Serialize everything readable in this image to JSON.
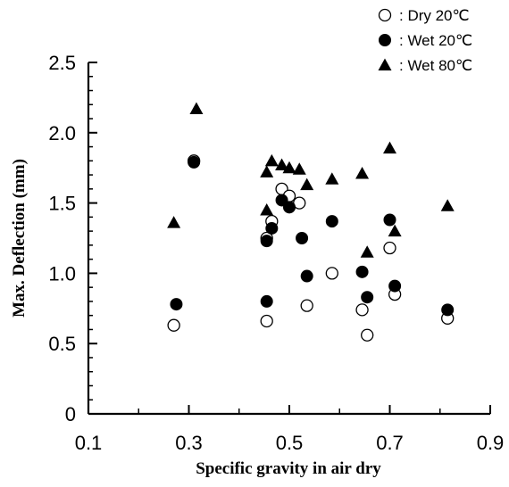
{
  "chart_data": {
    "type": "scatter",
    "title": "",
    "xlabel": "Specific gravity in air dry",
    "ylabel": "Max. Deflection (mm)",
    "xlim": [
      0.1,
      0.9
    ],
    "ylim": [
      0,
      2.5
    ],
    "x_ticks": [
      0.1,
      0.3,
      0.5,
      0.7,
      0.9
    ],
    "x_tick_labels": [
      "0.1",
      "0.3",
      "0.5",
      "0.7",
      "0.9"
    ],
    "y_ticks": [
      0,
      0.5,
      1.0,
      1.5,
      2.0,
      2.5
    ],
    "y_tick_labels": [
      "0",
      "0.5",
      "1.0",
      "1.5",
      "2.0",
      "2.5"
    ],
    "grid": false,
    "legend_position": "top-right",
    "series": [
      {
        "name": "Dry 20℃",
        "legend_label": ": Dry 20℃",
        "marker": "open-circle",
        "points": [
          [
            0.27,
            0.63
          ],
          [
            0.31,
            1.8
          ],
          [
            0.455,
            0.66
          ],
          [
            0.455,
            1.25
          ],
          [
            0.465,
            1.37
          ],
          [
            0.485,
            1.6
          ],
          [
            0.5,
            1.55
          ],
          [
            0.52,
            1.5
          ],
          [
            0.535,
            0.77
          ],
          [
            0.585,
            1.0
          ],
          [
            0.645,
            0.74
          ],
          [
            0.655,
            0.56
          ],
          [
            0.7,
            1.18
          ],
          [
            0.71,
            0.85
          ],
          [
            0.815,
            0.68
          ]
        ]
      },
      {
        "name": "Wet 20℃",
        "legend_label": ": Wet 20℃",
        "marker": "filled-circle",
        "points": [
          [
            0.275,
            0.78
          ],
          [
            0.31,
            1.79
          ],
          [
            0.455,
            0.8
          ],
          [
            0.455,
            1.23
          ],
          [
            0.465,
            1.32
          ],
          [
            0.485,
            1.52
          ],
          [
            0.5,
            1.47
          ],
          [
            0.525,
            1.25
          ],
          [
            0.535,
            0.98
          ],
          [
            0.585,
            1.37
          ],
          [
            0.645,
            1.01
          ],
          [
            0.655,
            0.83
          ],
          [
            0.7,
            1.38
          ],
          [
            0.71,
            0.91
          ],
          [
            0.815,
            0.74
          ]
        ]
      },
      {
        "name": "Wet 80℃",
        "legend_label": ": Wet 80℃",
        "marker": "filled-triangle",
        "points": [
          [
            0.27,
            1.36
          ],
          [
            0.315,
            2.17
          ],
          [
            0.455,
            1.45
          ],
          [
            0.455,
            1.72
          ],
          [
            0.465,
            1.8
          ],
          [
            0.485,
            1.77
          ],
          [
            0.5,
            1.75
          ],
          [
            0.52,
            1.74
          ],
          [
            0.535,
            1.63
          ],
          [
            0.585,
            1.67
          ],
          [
            0.645,
            1.71
          ],
          [
            0.655,
            1.15
          ],
          [
            0.7,
            1.89
          ],
          [
            0.71,
            1.3
          ],
          [
            0.815,
            1.48
          ]
        ]
      }
    ]
  }
}
